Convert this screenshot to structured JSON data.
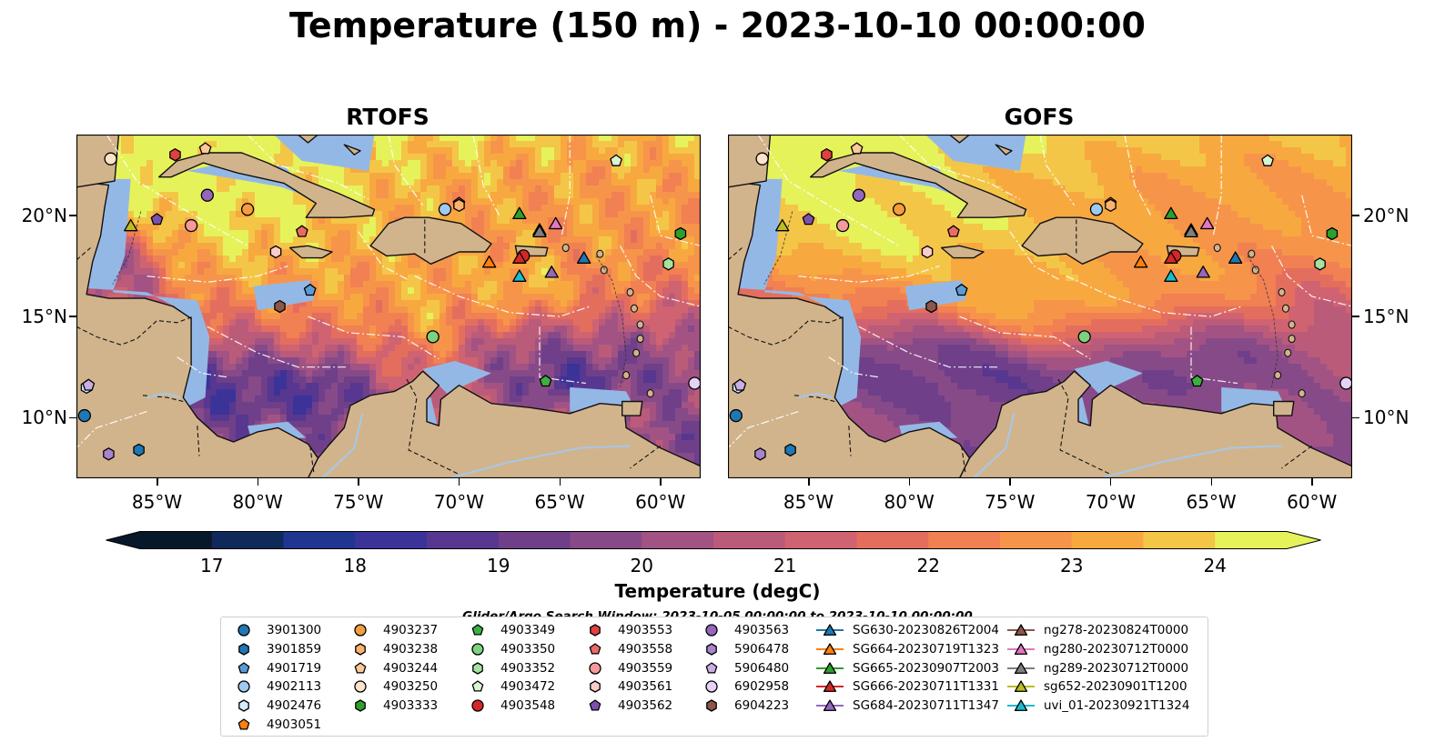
{
  "title": "Temperature (150 m) - 2023-10-10 00:00:00",
  "panels": [
    {
      "id": "rtofs",
      "title": "RTOFS"
    },
    {
      "id": "gofs",
      "title": "GOFS"
    }
  ],
  "lon_ticks": [
    "85°W",
    "80°W",
    "75°W",
    "70°W",
    "65°W",
    "60°W"
  ],
  "lon_values": [
    -85,
    -80,
    -75,
    -70,
    -65,
    -60
  ],
  "lat_ticks": [
    "20°N",
    "15°N",
    "10°N"
  ],
  "lat_values": [
    20,
    15,
    10
  ],
  "extent": {
    "lon": [
      -89,
      -58
    ],
    "lat": [
      7,
      24
    ]
  },
  "colorbar": {
    "label": "Temperature (degC)",
    "ticks": [
      "17",
      "18",
      "19",
      "20",
      "21",
      "22",
      "23",
      "24"
    ],
    "tick_values": [
      17,
      18,
      19,
      20,
      21,
      22,
      23,
      24
    ],
    "range": [
      16.5,
      24.5
    ],
    "step": 0.5,
    "colors": [
      "#08182b",
      "#0f2a5a",
      "#1f3590",
      "#3b3398",
      "#57378f",
      "#6f3f8a",
      "#874a88",
      "#a25384",
      "#bb5b7a",
      "#d06371",
      "#e46e5e",
      "#f18052",
      "#f6954a",
      "#f7a940",
      "#f4c648",
      "#e6f25a"
    ]
  },
  "colors": {
    "land": "#d2b48c",
    "shelf": "#94b8e6",
    "line": "#ffffff"
  },
  "search_window": "Glider/Argo Search Window: 2023-10-05 00:00:00 to 2023-10-10 00:00:00",
  "legend": [
    {
      "label": "3901300",
      "marker": "circle",
      "color": "#1f77b4"
    },
    {
      "label": "3901859",
      "marker": "hexagon",
      "color": "#1f77b4"
    },
    {
      "label": "4901719",
      "marker": "pentagon",
      "color": "#5b9bd5"
    },
    {
      "label": "4902113",
      "marker": "circle",
      "color": "#9ec9f0"
    },
    {
      "label": "4902476",
      "marker": "hexagon",
      "color": "#d6ecfb"
    },
    {
      "label": "4903051",
      "marker": "pentagon",
      "color": "#ff7f0e"
    },
    {
      "label": "4903237",
      "marker": "circle",
      "color": "#f59d3d"
    },
    {
      "label": "4903238",
      "marker": "hexagon",
      "color": "#fdb36a"
    },
    {
      "label": "4903244",
      "marker": "pentagon",
      "color": "#fdc89a"
    },
    {
      "label": "4903250",
      "marker": "circle",
      "color": "#fde3c8"
    },
    {
      "label": "4903333",
      "marker": "hexagon",
      "color": "#2ca02c"
    },
    {
      "label": "4903349",
      "marker": "pentagon",
      "color": "#3cb043"
    },
    {
      "label": "4903350",
      "marker": "circle",
      "color": "#7ed17e"
    },
    {
      "label": "4903352",
      "marker": "hexagon",
      "color": "#a5e3a0"
    },
    {
      "label": "4903472",
      "marker": "pentagon",
      "color": "#d8f5d2"
    },
    {
      "label": "4903548",
      "marker": "circle",
      "color": "#d62728"
    },
    {
      "label": "4903553",
      "marker": "hexagon",
      "color": "#e0413e"
    },
    {
      "label": "4903558",
      "marker": "pentagon",
      "color": "#ec6a66"
    },
    {
      "label": "4903559",
      "marker": "circle",
      "color": "#f59a98"
    },
    {
      "label": "4903561",
      "marker": "hexagon",
      "color": "#fccccb"
    },
    {
      "label": "4903562",
      "marker": "pentagon",
      "color": "#7b52ab"
    },
    {
      "label": "4903563",
      "marker": "circle",
      "color": "#9467bd"
    },
    {
      "label": "5906478",
      "marker": "hexagon",
      "color": "#a884cf"
    },
    {
      "label": "5906480",
      "marker": "pentagon",
      "color": "#c9afe3"
    },
    {
      "label": "6902958",
      "marker": "circle",
      "color": "#e5d2f5"
    },
    {
      "label": "6904223",
      "marker": "hexagon",
      "color": "#8c564b"
    },
    {
      "label": "SG630-20230826T2004",
      "marker": "triangle",
      "color": "#1f77b4"
    },
    {
      "label": "SG664-20230719T1323",
      "marker": "triangle",
      "color": "#ff7f0e"
    },
    {
      "label": "SG665-20230907T2003",
      "marker": "triangle",
      "color": "#2ca02c"
    },
    {
      "label": "SG666-20230711T1331",
      "marker": "triangle",
      "color": "#d62728"
    },
    {
      "label": "SG684-20230711T1347",
      "marker": "triangle",
      "color": "#9467bd"
    },
    {
      "label": "ng278-20230824T0000",
      "marker": "triangle",
      "color": "#8c564b"
    },
    {
      "label": "ng280-20230712T0000",
      "marker": "triangle",
      "color": "#e377c2"
    },
    {
      "label": "ng289-20230712T0000",
      "marker": "triangle",
      "color": "#7f7f7f"
    },
    {
      "label": "sg652-20230901T1200",
      "marker": "triangle",
      "color": "#bcbd22"
    },
    {
      "label": "uvi_01-20230921T1324",
      "marker": "triangle",
      "color": "#17becf"
    }
  ],
  "positions": [
    {
      "label": "3901300",
      "lon": -88.6,
      "lat": 10.1
    },
    {
      "label": "3901859",
      "lon": -85.9,
      "lat": 8.4
    },
    {
      "label": "4901719",
      "lon": -77.4,
      "lat": 16.3
    },
    {
      "label": "4902113",
      "lon": -70.7,
      "lat": 20.3
    },
    {
      "label": "4902476",
      "lon": -88.5,
      "lat": 11.5
    },
    {
      "label": "4903051",
      "lon": -70.0,
      "lat": 20.6
    },
    {
      "label": "4903237",
      "lon": -80.5,
      "lat": 20.3
    },
    {
      "label": "4903238",
      "lon": -70.0,
      "lat": 20.5
    },
    {
      "label": "4903244",
      "lon": -82.6,
      "lat": 23.3
    },
    {
      "label": "4903250",
      "lon": -87.3,
      "lat": 22.8
    },
    {
      "label": "4903333",
      "lon": -59.0,
      "lat": 19.1
    },
    {
      "label": "4903349",
      "lon": -65.7,
      "lat": 11.8
    },
    {
      "label": "4903350",
      "lon": -71.3,
      "lat": 14.0
    },
    {
      "label": "4903352",
      "lon": -59.6,
      "lat": 17.6
    },
    {
      "label": "4903472",
      "lon": -62.2,
      "lat": 22.7
    },
    {
      "label": "4903548",
      "lon": -66.8,
      "lat": 18.0
    },
    {
      "label": "4903553",
      "lon": -84.1,
      "lat": 23.0
    },
    {
      "label": "4903558",
      "lon": -77.8,
      "lat": 19.2
    },
    {
      "label": "4903559",
      "lon": -83.3,
      "lat": 19.5
    },
    {
      "label": "4903561",
      "lon": -79.1,
      "lat": 18.2
    },
    {
      "label": "4903562",
      "lon": -85.0,
      "lat": 19.8
    },
    {
      "label": "4903563",
      "lon": -82.5,
      "lat": 21.0
    },
    {
      "label": "5906478",
      "lon": -87.4,
      "lat": 8.2
    },
    {
      "label": "5906480",
      "lon": -88.4,
      "lat": 11.6
    },
    {
      "label": "6902958",
      "lon": -58.3,
      "lat": 11.7
    },
    {
      "label": "6904223",
      "lon": -78.9,
      "lat": 15.5
    },
    {
      "label": "SG630-20230826T2004",
      "lon": -63.8,
      "lat": 17.9
    },
    {
      "label": "SG664-20230719T1323",
      "lon": -68.5,
      "lat": 17.7
    },
    {
      "label": "SG665-20230907T2003",
      "lon": -67.0,
      "lat": 20.1
    },
    {
      "label": "SG666-20230711T1331",
      "lon": -67.0,
      "lat": 17.9
    },
    {
      "label": "SG684-20230711T1347",
      "lon": -65.4,
      "lat": 17.2
    },
    {
      "label": "ng278-20230824T0000",
      "lon": -66.0,
      "lat": 19.3
    },
    {
      "label": "ng280-20230712T0000",
      "lon": -65.2,
      "lat": 19.6
    },
    {
      "label": "ng289-20230712T0000",
      "lon": -66.0,
      "lat": 19.2
    },
    {
      "label": "sg652-20230901T1200",
      "lon": -86.3,
      "lat": 19.5
    },
    {
      "label": "uvi_01-20230921T1324",
      "lon": -67.0,
      "lat": 17.0
    }
  ]
}
